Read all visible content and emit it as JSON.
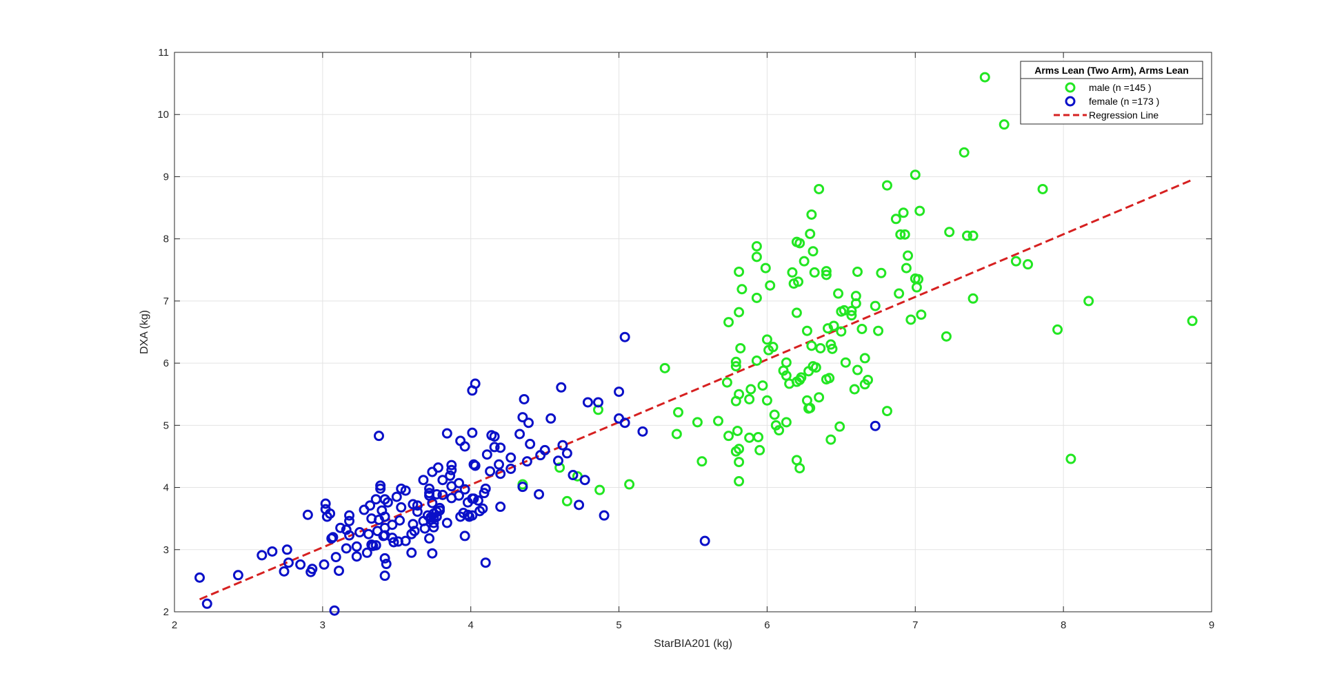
{
  "chart_data": {
    "type": "scatter",
    "title": "",
    "xlabel": "StarBIA201 (kg)",
    "ylabel": "DXA (kg)",
    "xlim": [
      2,
      9
    ],
    "ylim": [
      2,
      11
    ],
    "xticks": [
      2,
      3,
      4,
      5,
      6,
      7,
      8,
      9
    ],
    "yticks": [
      2,
      3,
      4,
      5,
      6,
      7,
      8,
      9,
      10,
      11
    ],
    "grid": true,
    "legend": {
      "title": "Arms Lean  (Two Arm), Arms Lean",
      "location": "top-right"
    },
    "series": [
      {
        "name": "male (n =145 )",
        "marker": "circle",
        "color": "#22e622",
        "points": [
          [
            7.47,
            10.6
          ],
          [
            7.6,
            9.84
          ],
          [
            7.33,
            9.39
          ],
          [
            7.0,
            9.03
          ],
          [
            6.81,
            8.86
          ],
          [
            7.86,
            8.8
          ],
          [
            6.35,
            8.8
          ],
          [
            6.92,
            8.42
          ],
          [
            7.03,
            8.45
          ],
          [
            6.3,
            8.39
          ],
          [
            6.87,
            8.32
          ],
          [
            7.23,
            8.11
          ],
          [
            6.29,
            8.08
          ],
          [
            6.9,
            8.07
          ],
          [
            6.93,
            8.07
          ],
          [
            7.35,
            8.05
          ],
          [
            7.39,
            8.05
          ],
          [
            6.2,
            7.95
          ],
          [
            6.22,
            7.93
          ],
          [
            5.93,
            7.88
          ],
          [
            6.31,
            7.8
          ],
          [
            6.95,
            7.73
          ],
          [
            5.93,
            7.71
          ],
          [
            7.68,
            7.64
          ],
          [
            6.25,
            7.64
          ],
          [
            7.76,
            7.59
          ],
          [
            6.94,
            7.53
          ],
          [
            5.99,
            7.53
          ],
          [
            5.81,
            7.47
          ],
          [
            6.61,
            7.47
          ],
          [
            6.4,
            7.48
          ],
          [
            6.17,
            7.46
          ],
          [
            6.32,
            7.46
          ],
          [
            6.77,
            7.45
          ],
          [
            6.4,
            7.42
          ],
          [
            7.0,
            7.36
          ],
          [
            7.02,
            7.35
          ],
          [
            6.21,
            7.31
          ],
          [
            6.18,
            7.28
          ],
          [
            6.02,
            7.25
          ],
          [
            7.01,
            7.22
          ],
          [
            5.83,
            7.19
          ],
          [
            6.89,
            7.12
          ],
          [
            6.48,
            7.12
          ],
          [
            6.6,
            7.08
          ],
          [
            5.93,
            7.05
          ],
          [
            7.39,
            7.04
          ],
          [
            8.17,
            7.0
          ],
          [
            6.6,
            6.96
          ],
          [
            6.73,
            6.92
          ],
          [
            6.52,
            6.85
          ],
          [
            6.57,
            6.84
          ],
          [
            6.5,
            6.83
          ],
          [
            5.81,
            6.82
          ],
          [
            6.2,
            6.81
          ],
          [
            7.04,
            6.78
          ],
          [
            6.57,
            6.77
          ],
          [
            8.87,
            6.68
          ],
          [
            5.74,
            6.66
          ],
          [
            6.97,
            6.7
          ],
          [
            6.45,
            6.6
          ],
          [
            6.41,
            6.56
          ],
          [
            6.64,
            6.55
          ],
          [
            6.27,
            6.52
          ],
          [
            7.96,
            6.54
          ],
          [
            6.75,
            6.52
          ],
          [
            6.5,
            6.51
          ],
          [
            7.21,
            6.43
          ],
          [
            6.0,
            6.38
          ],
          [
            6.43,
            6.3
          ],
          [
            6.3,
            6.28
          ],
          [
            6.36,
            6.24
          ],
          [
            6.04,
            6.26
          ],
          [
            5.82,
            6.24
          ],
          [
            6.01,
            6.21
          ],
          [
            6.44,
            6.23
          ],
          [
            6.66,
            6.08
          ],
          [
            5.93,
            6.04
          ],
          [
            5.79,
            6.02
          ],
          [
            5.79,
            5.95
          ],
          [
            6.13,
            6.01
          ],
          [
            6.53,
            6.01
          ],
          [
            6.33,
            5.93
          ],
          [
            6.31,
            5.95
          ],
          [
            6.28,
            5.87
          ],
          [
            6.61,
            5.89
          ],
          [
            6.11,
            5.88
          ],
          [
            6.13,
            5.8
          ],
          [
            6.23,
            5.77
          ],
          [
            6.22,
            5.73
          ],
          [
            6.68,
            5.73
          ],
          [
            6.42,
            5.76
          ],
          [
            6.4,
            5.74
          ],
          [
            5.73,
            5.69
          ],
          [
            6.2,
            5.7
          ],
          [
            6.15,
            5.67
          ],
          [
            6.66,
            5.66
          ],
          [
            5.97,
            5.64
          ],
          [
            5.89,
            5.58
          ],
          [
            6.59,
            5.58
          ],
          [
            5.81,
            5.5
          ],
          [
            6.35,
            5.45
          ],
          [
            5.88,
            5.42
          ],
          [
            6.0,
            5.4
          ],
          [
            5.79,
            5.39
          ],
          [
            6.27,
            5.4
          ],
          [
            6.29,
            5.28
          ],
          [
            6.28,
            5.27
          ],
          [
            6.81,
            5.23
          ],
          [
            5.4,
            5.21
          ],
          [
            6.05,
            5.17
          ],
          [
            5.67,
            5.07
          ],
          [
            5.53,
            5.05
          ],
          [
            6.13,
            5.05
          ],
          [
            6.06,
            5.0
          ],
          [
            6.49,
            4.98
          ],
          [
            6.08,
            4.92
          ],
          [
            5.8,
            4.91
          ],
          [
            5.39,
            4.86
          ],
          [
            5.74,
            4.83
          ],
          [
            5.94,
            4.81
          ],
          [
            5.88,
            4.8
          ],
          [
            6.43,
            4.77
          ],
          [
            5.81,
            4.62
          ],
          [
            5.95,
            4.6
          ],
          [
            5.79,
            4.58
          ],
          [
            6.2,
            4.44
          ],
          [
            5.81,
            4.41
          ],
          [
            5.56,
            4.42
          ],
          [
            8.05,
            4.46
          ],
          [
            4.6,
            4.32
          ],
          [
            6.22,
            4.31
          ],
          [
            5.81,
            4.1
          ],
          [
            4.87,
            3.96
          ],
          [
            5.07,
            4.05
          ],
          [
            4.35,
            4.05
          ],
          [
            4.65,
            3.78
          ],
          [
            4.72,
            4.18
          ],
          [
            4.86,
            5.25
          ],
          [
            5.31,
            5.92
          ]
        ]
      },
      {
        "name": "female (n =173 )",
        "marker": "circle",
        "color": "#0a10c8",
        "points": [
          [
            5.04,
            6.42
          ],
          [
            4.03,
            5.67
          ],
          [
            4.01,
            5.56
          ],
          [
            4.61,
            5.61
          ],
          [
            5.0,
            5.54
          ],
          [
            4.36,
            5.42
          ],
          [
            4.79,
            5.37
          ],
          [
            4.86,
            5.37
          ],
          [
            4.35,
            5.13
          ],
          [
            4.54,
            5.11
          ],
          [
            4.39,
            5.04
          ],
          [
            5.0,
            5.11
          ],
          [
            5.04,
            5.04
          ],
          [
            5.16,
            4.9
          ],
          [
            3.38,
            4.83
          ],
          [
            4.33,
            4.86
          ],
          [
            3.84,
            4.87
          ],
          [
            4.01,
            4.88
          ],
          [
            4.14,
            4.84
          ],
          [
            4.16,
            4.82
          ],
          [
            3.93,
            4.75
          ],
          [
            4.4,
            4.7
          ],
          [
            3.96,
            4.66
          ],
          [
            4.16,
            4.65
          ],
          [
            4.2,
            4.64
          ],
          [
            4.62,
            4.68
          ],
          [
            4.5,
            4.6
          ],
          [
            4.11,
            4.53
          ],
          [
            4.27,
            4.48
          ],
          [
            4.47,
            4.52
          ],
          [
            4.59,
            4.43
          ],
          [
            4.38,
            4.42
          ],
          [
            4.02,
            4.37
          ],
          [
            4.03,
            4.35
          ],
          [
            3.78,
            4.32
          ],
          [
            4.19,
            4.37
          ],
          [
            3.87,
            4.36
          ],
          [
            4.13,
            4.26
          ],
          [
            4.27,
            4.3
          ],
          [
            3.74,
            4.25
          ],
          [
            3.87,
            4.28
          ],
          [
            3.86,
            4.19
          ],
          [
            3.68,
            4.12
          ],
          [
            4.2,
            4.22
          ],
          [
            4.69,
            4.2
          ],
          [
            4.77,
            4.12
          ],
          [
            3.81,
            4.12
          ],
          [
            3.92,
            4.07
          ],
          [
            3.87,
            4.02
          ],
          [
            3.96,
            3.97
          ],
          [
            3.39,
            4.03
          ],
          [
            3.53,
            3.98
          ],
          [
            3.72,
            3.98
          ],
          [
            3.39,
            3.98
          ],
          [
            4.1,
            3.98
          ],
          [
            4.35,
            4.01
          ],
          [
            3.77,
            3.89
          ],
          [
            4.09,
            3.91
          ],
          [
            3.72,
            3.91
          ],
          [
            4.46,
            3.89
          ],
          [
            3.92,
            3.87
          ],
          [
            3.81,
            3.88
          ],
          [
            3.72,
            3.87
          ],
          [
            4.01,
            3.82
          ],
          [
            4.02,
            3.82
          ],
          [
            4.05,
            3.79
          ],
          [
            3.42,
            3.81
          ],
          [
            3.5,
            3.85
          ],
          [
            3.36,
            3.81
          ],
          [
            3.87,
            3.83
          ],
          [
            3.74,
            3.75
          ],
          [
            3.44,
            3.76
          ],
          [
            3.61,
            3.73
          ],
          [
            3.98,
            3.76
          ],
          [
            3.64,
            3.71
          ],
          [
            3.32,
            3.71
          ],
          [
            3.53,
            3.68
          ],
          [
            3.4,
            3.63
          ],
          [
            3.02,
            3.74
          ],
          [
            3.02,
            3.65
          ],
          [
            3.28,
            3.64
          ],
          [
            3.79,
            3.67
          ],
          [
            4.08,
            3.66
          ],
          [
            3.79,
            3.63
          ],
          [
            4.2,
            3.69
          ],
          [
            4.73,
            3.72
          ],
          [
            4.06,
            3.62
          ],
          [
            3.77,
            3.61
          ],
          [
            3.95,
            3.59
          ],
          [
            3.64,
            3.61
          ],
          [
            3.75,
            3.58
          ],
          [
            3.98,
            3.56
          ],
          [
            2.9,
            3.56
          ],
          [
            3.71,
            3.55
          ],
          [
            4.01,
            3.55
          ],
          [
            3.93,
            3.53
          ],
          [
            3.73,
            3.52
          ],
          [
            3.73,
            3.48
          ],
          [
            3.99,
            3.53
          ],
          [
            3.77,
            3.53
          ],
          [
            3.42,
            3.53
          ],
          [
            3.05,
            3.58
          ],
          [
            3.18,
            3.55
          ],
          [
            3.03,
            3.53
          ],
          [
            3.68,
            3.46
          ],
          [
            3.75,
            3.51
          ],
          [
            3.84,
            3.43
          ],
          [
            3.33,
            3.5
          ],
          [
            3.52,
            3.47
          ],
          [
            3.38,
            3.48
          ],
          [
            3.18,
            3.46
          ],
          [
            3.75,
            3.43
          ],
          [
            3.47,
            3.4
          ],
          [
            3.61,
            3.41
          ],
          [
            3.12,
            3.35
          ],
          [
            3.42,
            3.35
          ],
          [
            3.69,
            3.34
          ],
          [
            3.75,
            3.36
          ],
          [
            3.16,
            3.32
          ],
          [
            3.62,
            3.3
          ],
          [
            3.37,
            3.3
          ],
          [
            3.25,
            3.28
          ],
          [
            3.31,
            3.25
          ],
          [
            3.18,
            3.23
          ],
          [
            3.6,
            3.25
          ],
          [
            3.41,
            3.22
          ],
          [
            3.07,
            3.2
          ],
          [
            3.42,
            3.23
          ],
          [
            3.47,
            3.19
          ],
          [
            3.72,
            3.18
          ],
          [
            3.06,
            3.18
          ],
          [
            3.96,
            3.22
          ],
          [
            3.51,
            3.13
          ],
          [
            3.56,
            3.14
          ],
          [
            3.48,
            3.12
          ],
          [
            3.33,
            3.08
          ],
          [
            3.34,
            3.06
          ],
          [
            3.23,
            3.05
          ],
          [
            3.36,
            3.07
          ],
          [
            3.16,
            3.02
          ],
          [
            2.76,
            3.0
          ],
          [
            2.66,
            2.97
          ],
          [
            3.74,
            2.94
          ],
          [
            3.6,
            2.95
          ],
          [
            3.3,
            2.95
          ],
          [
            3.23,
            2.89
          ],
          [
            3.09,
            2.88
          ],
          [
            2.59,
            2.91
          ],
          [
            3.42,
            2.86
          ],
          [
            3.43,
            2.77
          ],
          [
            2.85,
            2.76
          ],
          [
            2.77,
            2.79
          ],
          [
            3.01,
            2.76
          ],
          [
            2.93,
            2.69
          ],
          [
            2.74,
            2.65
          ],
          [
            2.92,
            2.64
          ],
          [
            3.11,
            2.66
          ],
          [
            4.1,
            2.79
          ],
          [
            2.43,
            2.59
          ],
          [
            3.42,
            2.58
          ],
          [
            2.17,
            2.55
          ],
          [
            2.22,
            2.13
          ],
          [
            3.08,
            2.02
          ],
          [
            5.58,
            3.14
          ],
          [
            6.73,
            4.99
          ],
          [
            4.9,
            3.55
          ],
          [
            4.65,
            4.55
          ],
          [
            3.56,
            3.95
          ]
        ]
      }
    ],
    "regression_line": {
      "name": "Regression Line",
      "style": "dashed",
      "color": "#d62020",
      "points": [
        [
          2.17,
          2.2
        ],
        [
          8.87,
          8.95
        ]
      ]
    }
  }
}
